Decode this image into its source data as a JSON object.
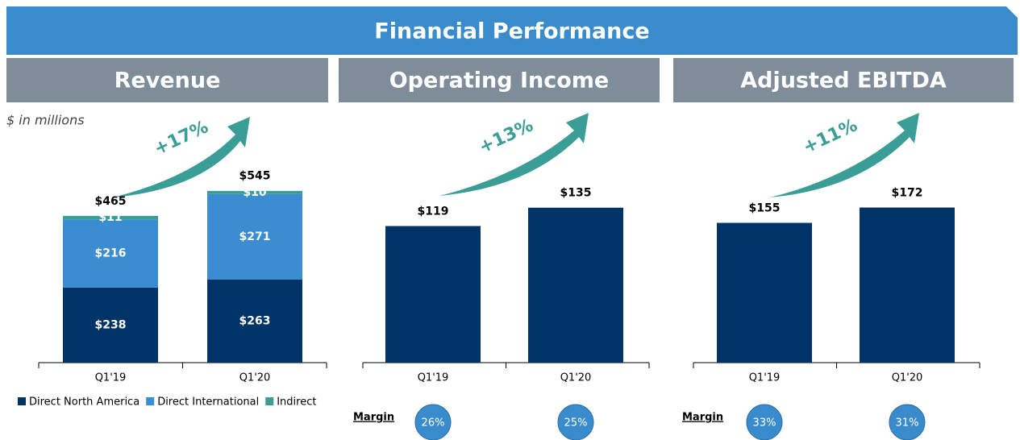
{
  "header": {
    "title": "Financial Performance"
  },
  "chart_data": [
    {
      "type": "stacked_bar",
      "title": "Revenue",
      "note": "$ in millions",
      "annotation": "+17%",
      "categories": [
        "Q1'19",
        "Q1'20"
      ],
      "series": [
        {
          "name": "Direct North America",
          "color": "#003366",
          "values": [
            238,
            263
          ],
          "value_labels": [
            "$238",
            "$263"
          ]
        },
        {
          "name": "Direct International",
          "color": "#3a8dd0",
          "values": [
            216,
            271
          ],
          "value_labels": [
            "$216",
            "$271"
          ]
        },
        {
          "name": "Indirect",
          "color": "#3a9e96",
          "values": [
            11,
            10
          ],
          "value_labels": [
            "$11",
            "$10"
          ]
        }
      ],
      "totals": [
        465,
        545
      ],
      "total_labels": [
        "$465",
        "$545"
      ],
      "ylim": [
        0,
        600
      ]
    },
    {
      "type": "bar",
      "title": "Operating Income",
      "annotation": "+13%",
      "categories": [
        "Q1'19",
        "Q1'20"
      ],
      "color": "#003366",
      "values": [
        119,
        135
      ],
      "value_labels": [
        "$119",
        "$135"
      ],
      "ylim": [
        0,
        165
      ],
      "margins": {
        "label": "Margin",
        "values": [
          26,
          25
        ],
        "value_labels": [
          "26%",
          "25%"
        ]
      }
    },
    {
      "type": "bar",
      "title": "Adjusted EBITDA",
      "annotation": "+11%",
      "categories": [
        "Q1'19",
        "Q1'20"
      ],
      "color": "#003366",
      "values": [
        155,
        172
      ],
      "value_labels": [
        "$155",
        "$172"
      ],
      "ylim": [
        0,
        210
      ],
      "margins": {
        "label": "Margin",
        "values": [
          33,
          31
        ],
        "value_labels": [
          "33%",
          "31%"
        ]
      }
    }
  ]
}
